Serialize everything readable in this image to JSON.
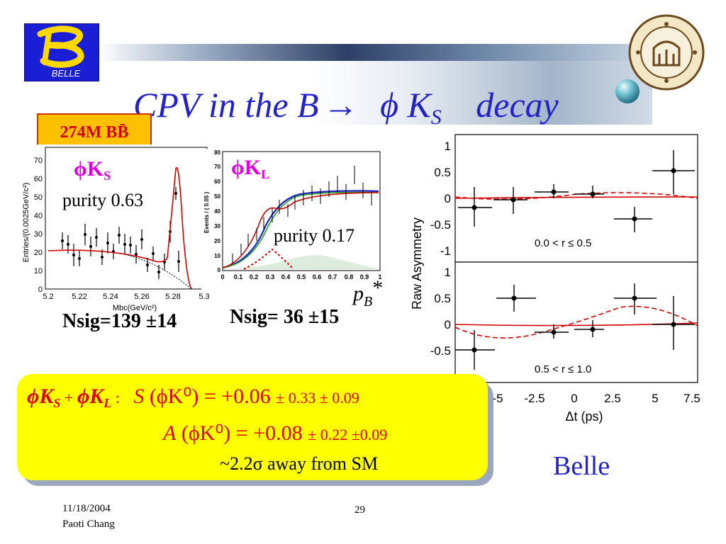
{
  "header": {
    "logo_text": "BELLE",
    "title_main": "CPV in the B",
    "title_arrow": "→",
    "title_phi": "ϕ K",
    "title_sub": "S",
    "title_end": "decay"
  },
  "badge": {
    "label": "274M BB̄"
  },
  "phiKs_plot": {
    "channel_label": "ϕK",
    "channel_sub": "S",
    "purity": "purity 0.63",
    "nsig": "Nsig=139 ±14",
    "ylabel": "Entries/(0.0025GeV/c²)",
    "xlabel": "Mbc(GeV/c²)",
    "x_ticks": [
      "5.2",
      "5.22",
      "5.24",
      "5.26",
      "5.28",
      "5.3"
    ],
    "y_ticks": [
      "0",
      "10",
      "20",
      "30",
      "40",
      "50",
      "60",
      "70"
    ]
  },
  "phiKl_plot": {
    "channel_label": "ϕK",
    "channel_sub": "L",
    "purity": "purity 0.17",
    "nsig": "Nsig= 36 ±15",
    "ylabel": "Events / ( 0.05 )",
    "xlabel_sym": "p",
    "xlabel_sub": "B",
    "xlabel_star": "*",
    "x_ticks": [
      "0",
      "0.1",
      "0.2",
      "0.3",
      "0.4",
      "0.5",
      "0.6",
      "0.7",
      "0.8",
      "0.9",
      "1"
    ],
    "y_ticks": [
      "0",
      "10",
      "20",
      "30",
      "40",
      "50",
      "60",
      "70",
      "80"
    ]
  },
  "asym_plot": {
    "ylabel": "Raw Asymmetry",
    "xlabel": "Δt (ps)",
    "top_label": "0.0 < r ≤ 0.5",
    "bottom_label": "0.5 < r ≤ 1.0",
    "top_y_ticks": [
      "1",
      "0.5",
      "0",
      "-0.5",
      "-1"
    ],
    "bottom_y_ticks": [
      "1",
      "0.5",
      "0",
      "-0.5"
    ],
    "x_ticks": [
      "-5",
      "-2.5",
      "0",
      "2.5",
      "5",
      "7.5"
    ],
    "colors": {
      "fit": "#e00000",
      "points": "#000000"
    }
  },
  "result": {
    "line1_prefix": "ϕK",
    "line1_sub1": "S",
    "line1_plus": " + ",
    "line1_phikl": "ϕK",
    "line1_sub2": "L",
    "line1_colon": " :",
    "line1_param": "S",
    "line1_value": "(ϕK⁰) = +0.06",
    "line1_errors": "± 0.33 ± 0.09",
    "line2_param": "A",
    "line2_value": "(ϕK⁰) = +0.08",
    "line2_errors": "±  0.22 ±0.09",
    "line3": "~2.2σ away from SM"
  },
  "footer": {
    "date": "11/18/2004",
    "author": "Paoti Chang",
    "page": "29"
  },
  "belle_label": "Belle"
}
